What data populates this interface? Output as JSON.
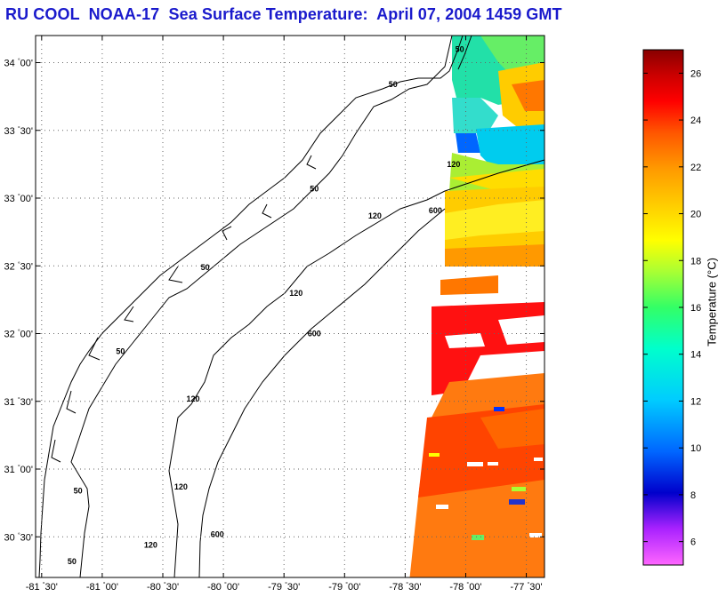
{
  "title": "RU COOL  NOAA-17  Sea Surface Temperature:  April 07, 2004 1459 GMT",
  "map": {
    "lat_labels": [
      {
        "deg": "34",
        "min": "00'",
        "lat": 34.0
      },
      {
        "deg": "33",
        "min": "30'",
        "lat": 33.5
      },
      {
        "deg": "33",
        "min": "00'",
        "lat": 33.0
      },
      {
        "deg": "32",
        "min": "30'",
        "lat": 32.5
      },
      {
        "deg": "32",
        "min": "00'",
        "lat": 32.0
      },
      {
        "deg": "31",
        "min": "30'",
        "lat": 31.5
      },
      {
        "deg": "31",
        "min": "00'",
        "lat": 31.0
      },
      {
        "deg": "30",
        "min": "30'",
        "lat": 30.5
      }
    ],
    "lon_labels": [
      {
        "deg": "-81",
        "min": "30'",
        "lon": -81.5
      },
      {
        "deg": "-81",
        "min": "00'",
        "lon": -81.0
      },
      {
        "deg": "-80",
        "min": "30'",
        "lon": -80.5
      },
      {
        "deg": "-80",
        "min": "00'",
        "lon": -80.0
      },
      {
        "deg": "-79",
        "min": "30'",
        "lon": -79.5
      },
      {
        "deg": "-79",
        "min": "00'",
        "lon": -79.0
      },
      {
        "deg": "-78",
        "min": "30'",
        "lon": -78.5
      },
      {
        "deg": "-78",
        "min": "00'",
        "lon": -78.0
      },
      {
        "deg": "-77",
        "min": "30'",
        "lon": -77.5
      }
    ],
    "lat_range": [
      30.2,
      34.2
    ],
    "lon_range": [
      -81.55,
      -77.35
    ],
    "grid": "dotted",
    "isobath_labels": [
      {
        "text": "50",
        "lon": -78.05,
        "lat": 34.08
      },
      {
        "text": "50",
        "lon": -78.6,
        "lat": 33.82
      },
      {
        "text": "120",
        "lon": -78.1,
        "lat": 33.23
      },
      {
        "text": "50",
        "lon": -79.25,
        "lat": 33.05
      },
      {
        "text": "120",
        "lon": -78.75,
        "lat": 32.85
      },
      {
        "text": "600",
        "lon": -78.25,
        "lat": 32.89
      },
      {
        "text": "50",
        "lon": -80.15,
        "lat": 32.47
      },
      {
        "text": "120",
        "lon": -79.4,
        "lat": 32.28
      },
      {
        "text": "600",
        "lon": -79.25,
        "lat": 31.98
      },
      {
        "text": "50",
        "lon": -80.85,
        "lat": 31.85
      },
      {
        "text": "120",
        "lon": -80.25,
        "lat": 31.5
      },
      {
        "text": "50",
        "lon": -81.2,
        "lat": 30.82
      },
      {
        "text": "120",
        "lon": -80.35,
        "lat": 30.85
      },
      {
        "text": "600",
        "lon": -80.05,
        "lat": 30.5
      },
      {
        "text": "120",
        "lon": -80.6,
        "lat": 30.42
      },
      {
        "text": "50",
        "lon": -81.25,
        "lat": 30.3
      }
    ]
  },
  "colorbar": {
    "label": "Temperature (°C)",
    "min": 5,
    "max": 27,
    "ticks": [
      "26",
      "24",
      "22",
      "20",
      "18",
      "16",
      "14",
      "12",
      "10",
      "8",
      "6"
    ],
    "tick_values": [
      26,
      24,
      22,
      20,
      18,
      16,
      14,
      12,
      10,
      8,
      6
    ],
    "colors": [
      "#ff66ff",
      "#aa22ff",
      "#0000cc",
      "#0066ff",
      "#00ccff",
      "#00ffcc",
      "#33ff66",
      "#aaff33",
      "#ffff00",
      "#ffcc00",
      "#ff9900",
      "#ff5500",
      "#ff0000",
      "#cc0000",
      "#880000"
    ]
  }
}
